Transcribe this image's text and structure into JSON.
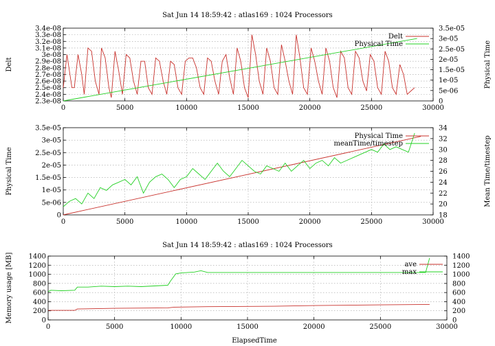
{
  "colors": {
    "red": "#c8302b",
    "green": "#22d022"
  },
  "chart_data": [
    {
      "type": "line",
      "title": "Sat Jun 14 18:59:42 : atlas169 : 1024 Processors",
      "ylabel": "Delt",
      "y2label": "Physical Time",
      "xlim": [
        0,
        30000
      ],
      "ylim": [
        2.3e-08,
        3.4e-08
      ],
      "y2lim": [
        0,
        3.5e-05
      ],
      "xticks": [
        "0",
        "5000",
        "10000",
        "15000",
        "20000",
        "25000",
        "30000"
      ],
      "yticks": [
        "2.3e-08",
        "2.4e-08",
        "2.5e-08",
        "2.6e-08",
        "2.7e-08",
        "2.8e-08",
        "2.9e-08",
        "3e-08",
        "3.1e-08",
        "3.2e-08",
        "3.3e-08",
        "3.4e-08"
      ],
      "y2ticks": [
        "0",
        "5e-06",
        "1e-05",
        "1.5e-05",
        "2e-05",
        "2.5e-05",
        "3e-05",
        "3.5e-05"
      ],
      "grid": true,
      "legend_position": "top-right",
      "series": [
        {
          "name": "Delt",
          "axis": "y1",
          "color": "#c8302b",
          "x": [
            0,
            300,
            500,
            700,
            900,
            1200,
            1500,
            1700,
            2000,
            2300,
            2600,
            2900,
            3100,
            3400,
            3700,
            3900,
            4200,
            4500,
            4800,
            5100,
            5400,
            5700,
            6000,
            6300,
            6600,
            6900,
            7200,
            7500,
            7800,
            8100,
            8400,
            8700,
            9000,
            9300,
            9600,
            9900,
            10200,
            10500,
            10800,
            11100,
            11400,
            11700,
            12000,
            12300,
            12600,
            12900,
            13200,
            13500,
            13800,
            14100,
            14400,
            14700,
            15000,
            15300,
            15600,
            15900,
            16200,
            16500,
            16800,
            17100,
            17400,
            17700,
            18000,
            18300,
            18600,
            18900,
            19200,
            19500,
            19800,
            20100,
            20400,
            20700,
            21000,
            21300,
            21600,
            21900,
            22200,
            22500,
            22800,
            23100,
            23400,
            23700,
            24000,
            24300,
            24600,
            24900,
            25200,
            25500,
            25800,
            26100,
            26400,
            26700,
            27000,
            27300,
            27600,
            27900,
            28200,
            28500
          ],
          "y": [
            2.5e-08,
            3e-08,
            2.75e-08,
            2.5e-08,
            2.5e-08,
            3e-08,
            2.7e-08,
            2.4e-08,
            3.1e-08,
            3.05e-08,
            2.6e-08,
            2.4e-08,
            3.1e-08,
            2.95e-08,
            2.5e-08,
            2.35e-08,
            3.05e-08,
            2.75e-08,
            2.4e-08,
            3e-08,
            2.95e-08,
            2.6e-08,
            2.4e-08,
            2.9e-08,
            2.9e-08,
            2.5e-08,
            2.4e-08,
            2.95e-08,
            2.9e-08,
            2.6e-08,
            2.4e-08,
            2.9e-08,
            2.85e-08,
            2.5e-08,
            2.4e-08,
            2.9e-08,
            2.95e-08,
            2.95e-08,
            2.8e-08,
            2.5e-08,
            2.4e-08,
            2.95e-08,
            2.9e-08,
            2.6e-08,
            2.4e-08,
            2.9e-08,
            3e-08,
            2.65e-08,
            2.4e-08,
            3.1e-08,
            2.9e-08,
            2.5e-08,
            2.35e-08,
            3.3e-08,
            3e-08,
            2.6e-08,
            2.4e-08,
            3.1e-08,
            2.9e-08,
            2.5e-08,
            2.4e-08,
            3.15e-08,
            2.9e-08,
            2.6e-08,
            2.4e-08,
            3.3e-08,
            2.95e-08,
            2.5e-08,
            2.4e-08,
            3.1e-08,
            2.9e-08,
            2.6e-08,
            2.4e-08,
            3.1e-08,
            2.9e-08,
            2.5e-08,
            2.35e-08,
            3.05e-08,
            2.95e-08,
            2.5e-08,
            2.4e-08,
            3.05e-08,
            2.95e-08,
            2.6e-08,
            2.45e-08,
            3e-08,
            2.9e-08,
            2.5e-08,
            2.4e-08,
            3.05e-08,
            2.9e-08,
            2.5e-08,
            2.4e-08,
            2.85e-08,
            2.7e-08,
            2.4e-08,
            2.45e-08,
            2.5e-08
          ]
        },
        {
          "name": "Physical Time",
          "axis": "y2",
          "color": "#22d022",
          "x": [
            0,
            28700
          ],
          "y": [
            0,
            3e-05
          ]
        }
      ]
    },
    {
      "type": "line",
      "title": "",
      "ylabel": "Physical Time",
      "y2label": "Mean Time/timestep",
      "xlim": [
        0,
        30000
      ],
      "ylim": [
        0,
        3.5e-05
      ],
      "y2lim": [
        18,
        34
      ],
      "xticks": [
        "0",
        "5000",
        "10000",
        "15000",
        "20000",
        "25000",
        "30000"
      ],
      "yticks": [
        "0",
        "5e-06",
        "1e-05",
        "1.5e-05",
        "2e-05",
        "2.5e-05",
        "3e-05",
        "3.5e-05"
      ],
      "y2ticks": [
        "18",
        "20",
        "22",
        "24",
        "26",
        "28",
        "30",
        "32",
        "34"
      ],
      "grid": true,
      "legend_position": "top-right",
      "series": [
        {
          "name": "Physical Time",
          "axis": "y1",
          "color": "#c8302b",
          "x": [
            0,
            29000
          ],
          "y": [
            0,
            3.15e-05
          ]
        },
        {
          "name": "meanTime/timestep",
          "axis": "y2",
          "color": "#22d022",
          "x": [
            0,
            500,
            1000,
            1500,
            2000,
            2500,
            3000,
            3500,
            4000,
            4500,
            5000,
            5500,
            6000,
            6500,
            7000,
            7500,
            8000,
            8500,
            9000,
            9500,
            10000,
            10500,
            11000,
            11500,
            12000,
            12500,
            13000,
            13500,
            14000,
            14500,
            15000,
            15500,
            16000,
            16500,
            17000,
            17500,
            18000,
            18500,
            19000,
            19500,
            20000,
            20500,
            21000,
            21500,
            22000,
            22500,
            23000,
            23500,
            24000,
            24500,
            25000,
            25500,
            26000,
            26500,
            27000,
            27500,
            28000,
            28500
          ],
          "y": [
            19.5,
            20.5,
            21.0,
            20.0,
            22.0,
            21.0,
            23.0,
            22.5,
            23.5,
            24.0,
            24.5,
            23.5,
            25.0,
            22.0,
            24.0,
            25.0,
            25.5,
            24.5,
            23.0,
            24.5,
            25.0,
            26.5,
            25.5,
            24.5,
            26.0,
            27.5,
            26.0,
            25.0,
            26.5,
            28.0,
            27.0,
            26.0,
            25.5,
            27.0,
            26.5,
            26.0,
            27.5,
            26.0,
            27.0,
            28.0,
            26.5,
            27.5,
            28.0,
            27.0,
            28.5,
            27.5,
            28.0,
            28.5,
            29.0,
            29.5,
            30.0,
            29.5,
            31.0,
            30.0,
            30.5,
            30.0,
            29.5,
            33.0
          ]
        }
      ]
    },
    {
      "type": "line",
      "title": "Sat Jun 14 18:59:42 : atlas169 : 1024 Processors",
      "xlabel": "ElapsedTime",
      "ylabel": "Memory usage [MB]",
      "xlim": [
        0,
        30000
      ],
      "ylim": [
        0,
        1400
      ],
      "y2lim": [
        0,
        1400
      ],
      "xticks": [
        "0",
        "5000",
        "10000",
        "15000",
        "20000",
        "25000",
        "30000"
      ],
      "yticks": [
        "0",
        "200",
        "400",
        "600",
        "800",
        "1000",
        "1200",
        "1400"
      ],
      "y2ticks": [
        "0",
        "200",
        "400",
        "600",
        "800",
        "1000",
        "1200",
        "1400"
      ],
      "grid": true,
      "legend_position": "top-right",
      "series": [
        {
          "name": "ave",
          "axis": "y1",
          "color": "#c8302b",
          "x": [
            0,
            2000,
            2200,
            5000,
            9000,
            9500,
            12000,
            17000,
            20000,
            25000,
            28700
          ],
          "y": [
            210,
            210,
            240,
            255,
            265,
            280,
            290,
            300,
            315,
            330,
            340
          ]
        },
        {
          "name": "max",
          "axis": "y1",
          "color": "#22d022",
          "x": [
            0,
            200,
            1000,
            2000,
            2200,
            3000,
            4000,
            5000,
            6000,
            7000,
            8000,
            9000,
            9200,
            9600,
            10000,
            11000,
            11500,
            12000,
            15000,
            20000,
            25000,
            28400,
            28700
          ],
          "y": [
            620,
            650,
            640,
            650,
            720,
            720,
            740,
            730,
            740,
            730,
            745,
            760,
            850,
            1010,
            1030,
            1050,
            1080,
            1040,
            1040,
            1040,
            1040,
            1040,
            1360
          ]
        }
      ]
    }
  ]
}
